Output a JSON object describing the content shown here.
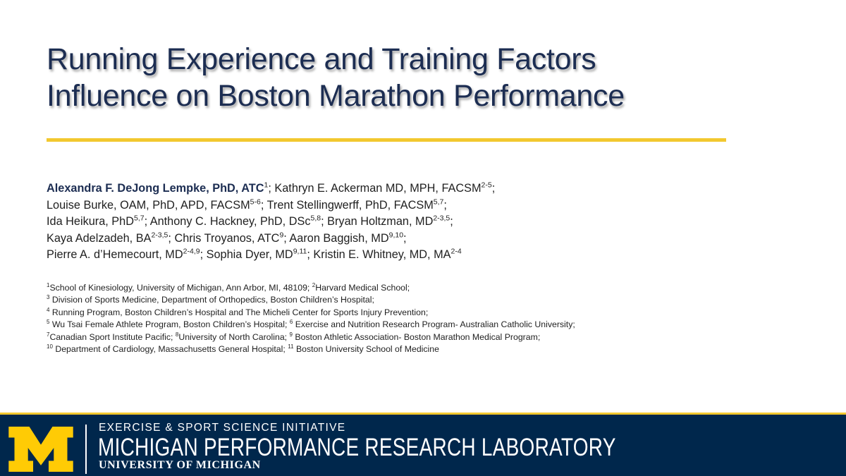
{
  "title": {
    "line1": "Running Experience and Training Factors",
    "line2": "Influence on Boston Marathon Performance"
  },
  "authors": {
    "line1": {
      "lead": "Alexandra F. DeJong Lempke, PhD, ATC",
      "lead_sup": "1",
      "t1": "; Kathryn E. Ackerman MD, MPH, FACSM",
      "s1": "2-5",
      "t2": ";"
    },
    "line2": {
      "t1": "Louise Burke, OAM, PhD, APD, FACSM",
      "s1": "5-6",
      "t2": "; Trent Stellingwerff, PhD, FACSM",
      "s2": "5,7",
      "t3": ";"
    },
    "line3": {
      "t1": "Ida Heikura, PhD",
      "s1": "5,7",
      "t2": "; Anthony C. Hackney, PhD, DSc",
      "s2": "5,8",
      "t3": "; Bryan Holtzman, MD",
      "s3": "2-3,5",
      "t4": ";"
    },
    "line4": {
      "t1": "Kaya Adelzadeh, BA",
      "s1": "2-3,5",
      "t2": "; Chris Troyanos, ATC",
      "s2": "9",
      "t3": "; Aaron Baggish, MD",
      "s3": "9,10",
      "t4": ";"
    },
    "line5": {
      "t1": "Pierre A. d’Hemecourt, MD",
      "s1": "2-4,9",
      "t2": "; Sophia Dyer, MD",
      "s2": "9,11",
      "t3": "; Kristin E. Whitney, MD, MA",
      "s3": "2-4"
    }
  },
  "affiliations": {
    "line1": {
      "s1": "1",
      "t1": "School of Kinesiology, University of Michigan, Ann Arbor, MI, 48109; ",
      "s2": "2",
      "t2": "Harvard Medical School;"
    },
    "line2": {
      "s1": "3",
      "t1": " Division of Sports Medicine, Department of Orthopedics, Boston Children’s Hospital;"
    },
    "line3": {
      "s1": "4",
      "t1": " Running Program, Boston Children’s Hospital and The Micheli Center for Sports Injury Prevention;"
    },
    "line4": {
      "s1": "5",
      "t1": " Wu Tsai Female Athlete Program, Boston Children’s Hospital; ",
      "s2": "6",
      "t2": " Exercise and Nutrition Research Program- Australian Catholic University;"
    },
    "line5": {
      "s1": "7",
      "t1": "Canadian Sport Institute Pacific; ",
      "s2": "8",
      "t2": "University of North Carolina; ",
      "s3": "9",
      "t3": " Boston Athletic Association- Boston Marathon Medical Program;"
    },
    "line6": {
      "s1": "10",
      "t1": " Department of Cardiology, Massachusetts General Hospital; ",
      "s2": "11",
      "t2": " Boston University School of Medicine"
    }
  },
  "footer": {
    "logo_letter": "M",
    "initiative": "EXERCISE & SPORT SCIENCE INITIATIVE",
    "lab": "MICHIGAN PERFORMANCE RESEARCH LABORATORY",
    "university": "UNIVERSITY OF MICHIGAN"
  },
  "colors": {
    "navy": "#00274c",
    "maize": "#f2c82f",
    "title": "#1c2d52"
  }
}
